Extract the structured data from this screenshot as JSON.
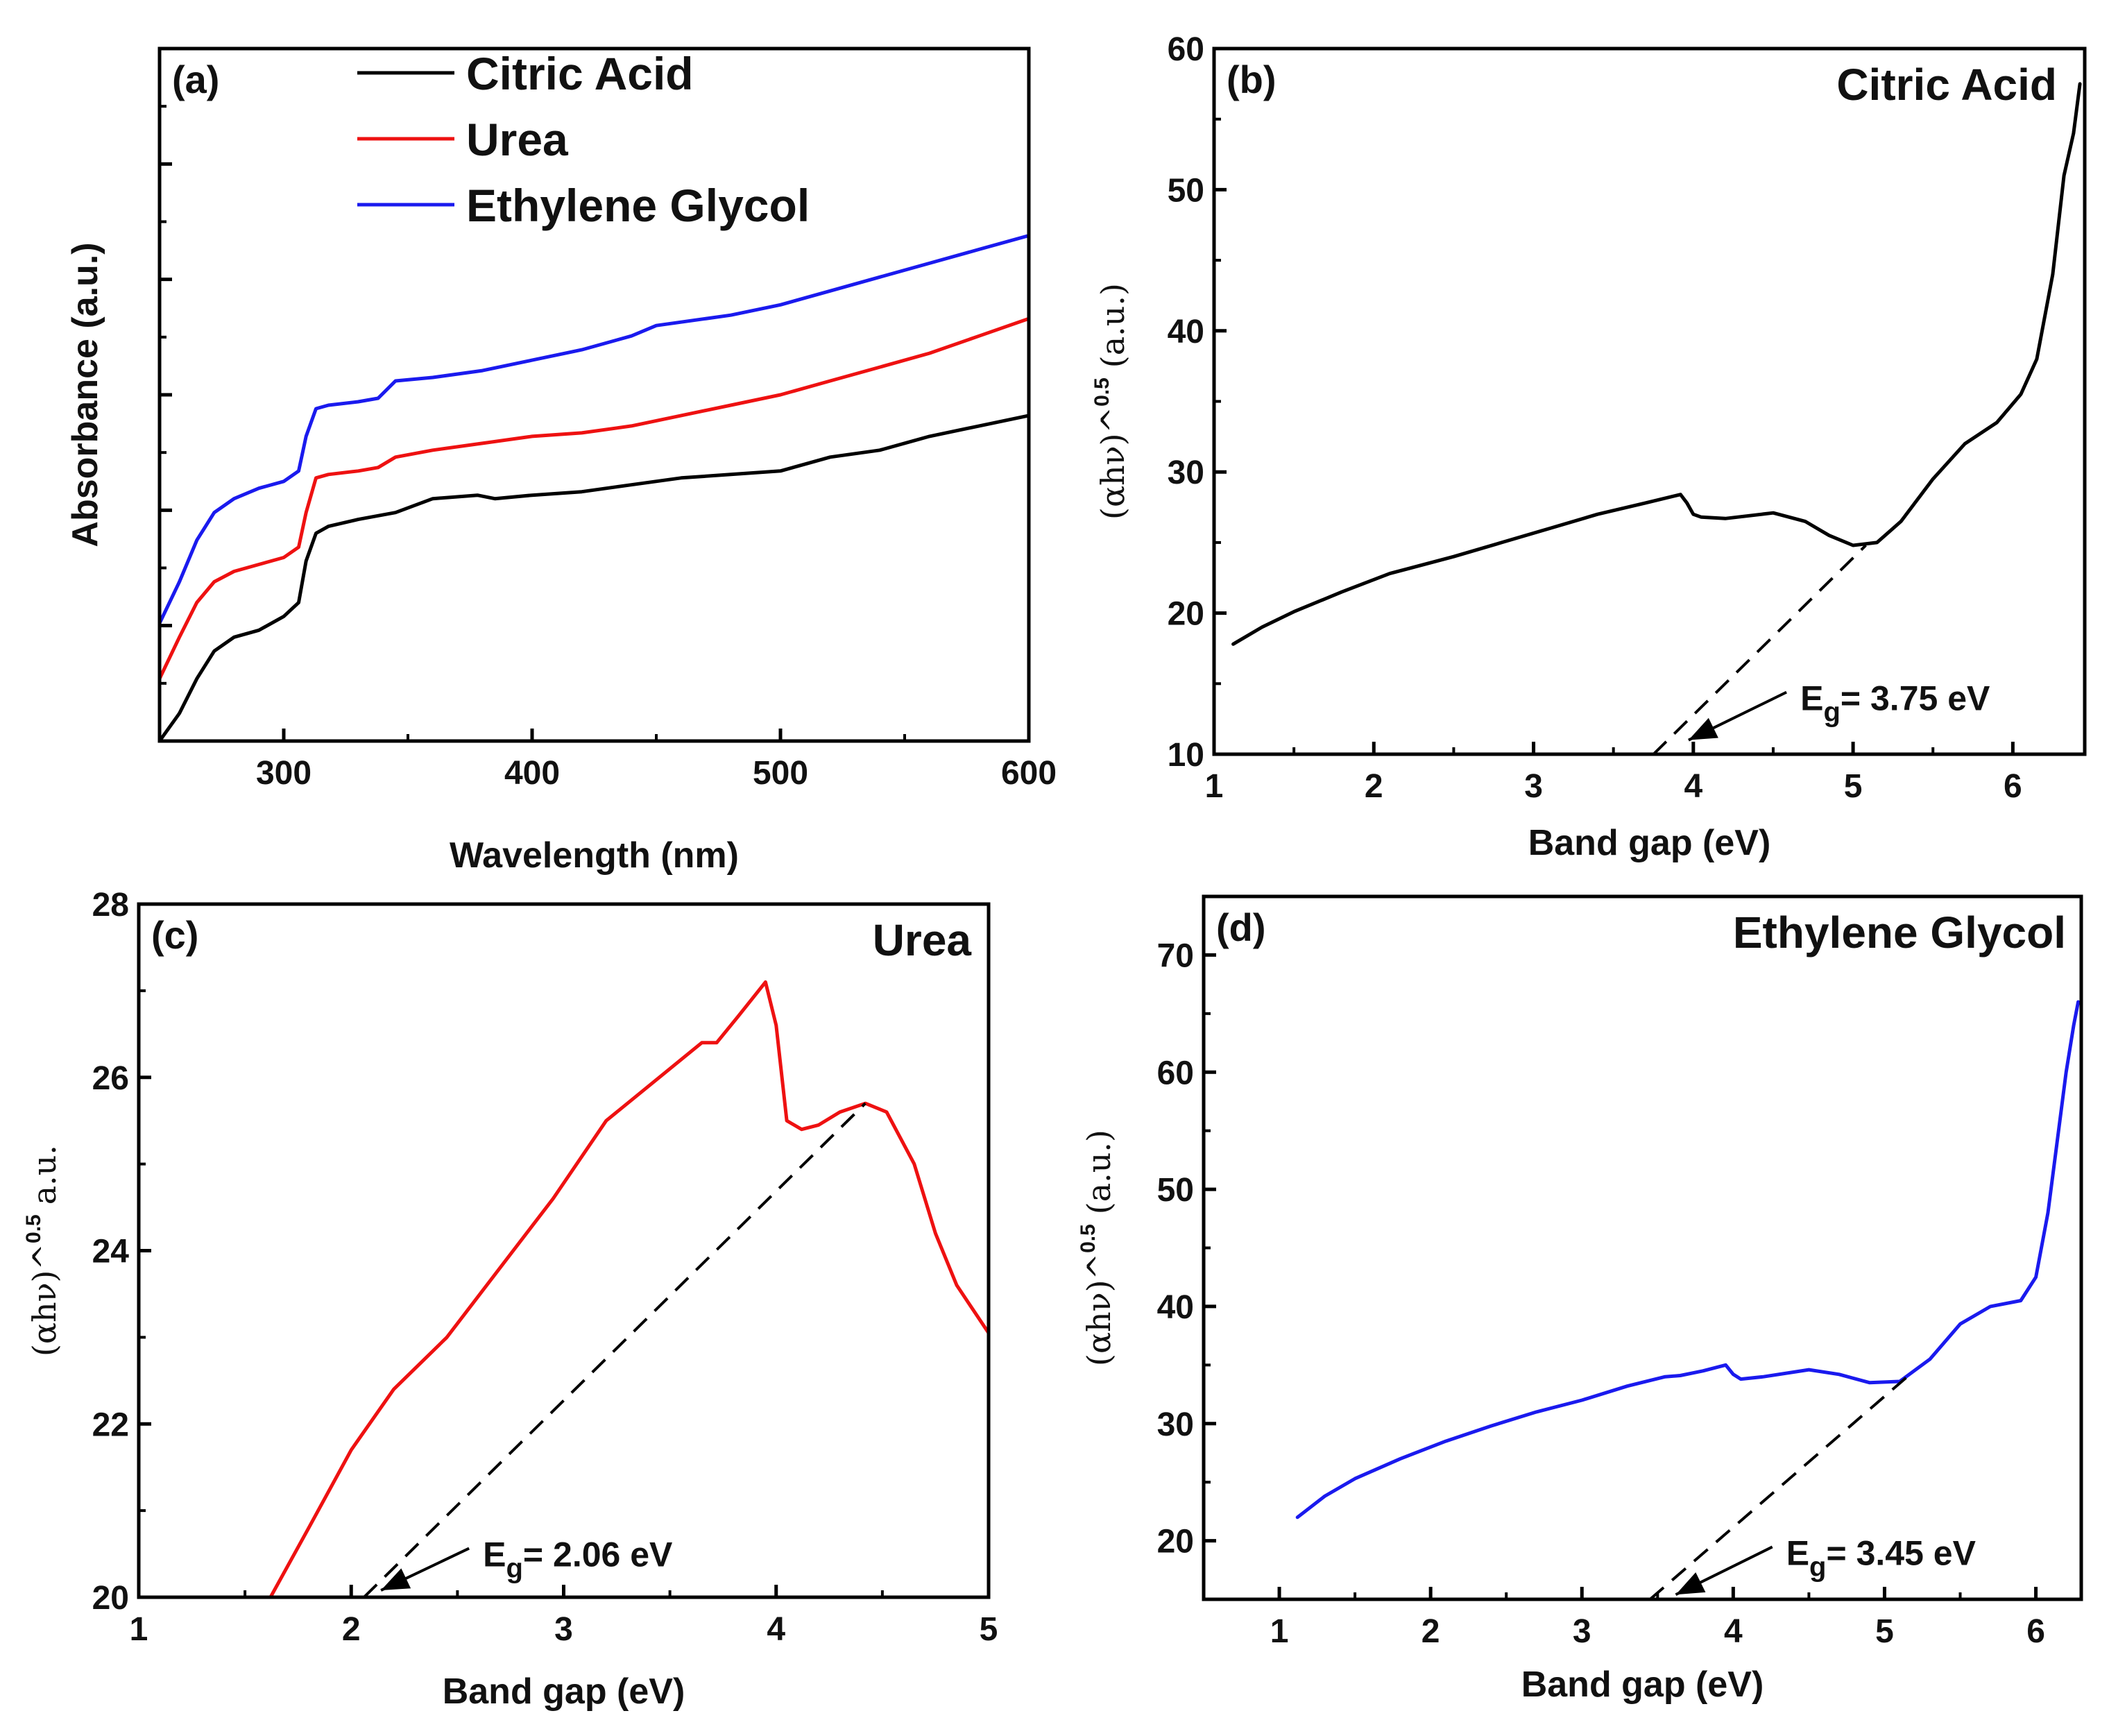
{
  "chart_data": [
    {
      "id": "a",
      "type": "line",
      "panel_label": "(a)",
      "xlabel": "Wavelength (nm)",
      "ylabel": "Absorbance (a.u.)",
      "xlim": [
        250,
        600
      ],
      "ylim": [
        0,
        1
      ],
      "xticks": [
        300,
        400,
        500,
        600
      ],
      "y_tick_labels_shown": false,
      "legend_position": "top-center",
      "series": [
        {
          "name": "Citric Acid",
          "color": "#000000",
          "x": [
            250,
            258,
            265,
            272,
            280,
            290,
            300,
            306,
            309,
            313,
            318,
            330,
            345,
            360,
            378,
            385,
            400,
            420,
            440,
            460,
            480,
            500,
            510,
            520,
            540,
            560,
            580,
            600
          ],
          "y": [
            0.0,
            0.04,
            0.09,
            0.13,
            0.15,
            0.16,
            0.18,
            0.2,
            0.26,
            0.3,
            0.31,
            0.32,
            0.33,
            0.35,
            0.355,
            0.35,
            0.355,
            0.36,
            0.37,
            0.38,
            0.385,
            0.39,
            0.4,
            0.41,
            0.42,
            0.44,
            0.455,
            0.47
          ]
        },
        {
          "name": "Urea",
          "color": "#ee1111",
          "x": [
            250,
            258,
            265,
            272,
            280,
            290,
            300,
            306,
            309,
            313,
            318,
            330,
            338,
            345,
            360,
            380,
            400,
            420,
            440,
            460,
            480,
            500,
            520,
            540,
            560,
            580,
            600
          ],
          "y": [
            0.09,
            0.15,
            0.2,
            0.23,
            0.245,
            0.255,
            0.265,
            0.28,
            0.33,
            0.38,
            0.385,
            0.39,
            0.395,
            0.41,
            0.42,
            0.43,
            0.44,
            0.445,
            0.455,
            0.47,
            0.485,
            0.5,
            0.52,
            0.54,
            0.56,
            0.585,
            0.61
          ]
        },
        {
          "name": "Ethylene Glycol",
          "color": "#1a1aee",
          "x": [
            250,
            258,
            265,
            272,
            280,
            290,
            300,
            306,
            309,
            313,
            318,
            330,
            338,
            345,
            360,
            380,
            400,
            420,
            440,
            450,
            460,
            480,
            500,
            520,
            540,
            560,
            580,
            600
          ],
          "y": [
            0.17,
            0.23,
            0.29,
            0.33,
            0.35,
            0.365,
            0.375,
            0.39,
            0.44,
            0.48,
            0.485,
            0.49,
            0.495,
            0.52,
            0.525,
            0.535,
            0.55,
            0.565,
            0.585,
            0.6,
            0.605,
            0.615,
            0.63,
            0.65,
            0.67,
            0.69,
            0.71,
            0.73
          ]
        }
      ]
    },
    {
      "id": "b",
      "type": "line",
      "panel_label": "(b)",
      "title": "Citric Acid",
      "xlabel": "Band gap (eV)",
      "ylabel": "(αhν)^",
      "ylabel_superscript": "0.5",
      "ylabel_suffix": "(a.u.)",
      "xlim": [
        1,
        6.45
      ],
      "ylim": [
        10,
        60
      ],
      "xticks": [
        1,
        2,
        3,
        4,
        5,
        6
      ],
      "yticks": [
        10,
        20,
        30,
        40,
        50,
        60
      ],
      "series": [
        {
          "name": "Citric Acid",
          "color": "#000000",
          "x": [
            1.12,
            1.3,
            1.5,
            1.8,
            2.1,
            2.5,
            2.8,
            3.1,
            3.4,
            3.7,
            3.92,
            3.96,
            4.0,
            4.05,
            4.2,
            4.5,
            4.7,
            4.85,
            5.0,
            5.15,
            5.3,
            5.5,
            5.7,
            5.9,
            6.05,
            6.15,
            6.25,
            6.32,
            6.38,
            6.42
          ],
          "y": [
            17.8,
            19.0,
            20.1,
            21.5,
            22.8,
            24.0,
            25.0,
            26.0,
            27.0,
            27.8,
            28.4,
            27.8,
            27.0,
            26.8,
            26.7,
            27.1,
            26.5,
            25.5,
            24.8,
            25.0,
            26.5,
            29.5,
            32.0,
            33.5,
            35.5,
            38.0,
            44.0,
            51.0,
            54.0,
            57.5
          ]
        },
        {
          "name": "fit",
          "dashed": true,
          "color": "#000000",
          "x": [
            3.75,
            5.08
          ],
          "y": [
            10,
            24.8
          ]
        }
      ],
      "annotation": {
        "text": "= 3.75 eV",
        "symbol": "E",
        "subscript": "g",
        "x": 4.67,
        "y": 14.0,
        "arrow_to": [
          3.97,
          11.0
        ]
      }
    },
    {
      "id": "c",
      "type": "line",
      "panel_label": "(c)",
      "title": "Urea",
      "xlabel": "Band gap (eV)",
      "ylabel": "(αhν)^",
      "ylabel_superscript": "0.5",
      "ylabel_suffix": "a.u.",
      "xlim": [
        1,
        5
      ],
      "ylim": [
        20,
        28
      ],
      "xticks": [
        1,
        2,
        3,
        4,
        5
      ],
      "yticks": [
        20,
        22,
        24,
        26,
        28
      ],
      "series": [
        {
          "name": "Urea",
          "color": "#ee1111",
          "x": [
            1.62,
            1.8,
            2.0,
            2.2,
            2.45,
            2.7,
            2.95,
            3.2,
            3.45,
            3.65,
            3.72,
            3.82,
            3.95,
            4.0,
            4.05,
            4.12,
            4.2,
            4.3,
            4.42,
            4.52,
            4.65,
            4.75,
            4.85,
            5.0
          ],
          "y": [
            20.0,
            20.8,
            21.7,
            22.4,
            23.0,
            23.8,
            24.6,
            25.5,
            26.0,
            26.4,
            26.4,
            26.7,
            27.1,
            26.6,
            25.5,
            25.4,
            25.45,
            25.6,
            25.7,
            25.6,
            25.0,
            24.2,
            23.6,
            23.05
          ]
        },
        {
          "name": "fit",
          "dashed": true,
          "color": "#000000",
          "x": [
            2.06,
            4.42
          ],
          "y": [
            20,
            25.7
          ]
        }
      ],
      "annotation": {
        "text": "= 2.06 eV",
        "symbol": "E",
        "subscript": "g",
        "x": 2.62,
        "y": 20.5,
        "arrow_to": [
          2.14,
          20.08
        ]
      }
    },
    {
      "id": "d",
      "type": "line",
      "panel_label": "(d)",
      "title": "Ethylene Glycol",
      "xlabel": "Band gap (eV)",
      "ylabel": "(αhν)^",
      "ylabel_superscript": "0.5",
      "ylabel_suffix": "(a.u.)",
      "xlim": [
        0.5,
        6.3
      ],
      "ylim": [
        15,
        75
      ],
      "xticks": [
        1,
        2,
        3,
        4,
        5,
        6
      ],
      "yticks": [
        20,
        30,
        40,
        50,
        60,
        70
      ],
      "series": [
        {
          "name": "Ethylene Glycol",
          "color": "#1a1aee",
          "x": [
            1.12,
            1.3,
            1.5,
            1.8,
            2.1,
            2.4,
            2.7,
            3.0,
            3.3,
            3.55,
            3.65,
            3.8,
            3.95,
            4.0,
            4.05,
            4.2,
            4.5,
            4.7,
            4.9,
            5.1,
            5.3,
            5.5,
            5.7,
            5.9,
            6.0,
            6.08,
            6.15,
            6.2,
            6.25,
            6.28
          ],
          "y": [
            22.0,
            23.8,
            25.3,
            27.0,
            28.5,
            29.8,
            31.0,
            32.0,
            33.2,
            34.0,
            34.1,
            34.5,
            35.0,
            34.2,
            33.8,
            34.0,
            34.6,
            34.2,
            33.5,
            33.6,
            35.5,
            38.5,
            40.0,
            40.5,
            42.5,
            48.0,
            55.0,
            60.0,
            64.0,
            66.0
          ]
        },
        {
          "name": "fit",
          "dashed": true,
          "color": "#000000",
          "x": [
            3.45,
            5.15
          ],
          "y": [
            15,
            34.0
          ]
        }
      ],
      "annotation": {
        "text": "= 3.45 eV",
        "symbol": "E",
        "subscript": "g",
        "x": 4.35,
        "y": 19.0,
        "arrow_to": [
          3.62,
          15.4
        ]
      }
    }
  ]
}
